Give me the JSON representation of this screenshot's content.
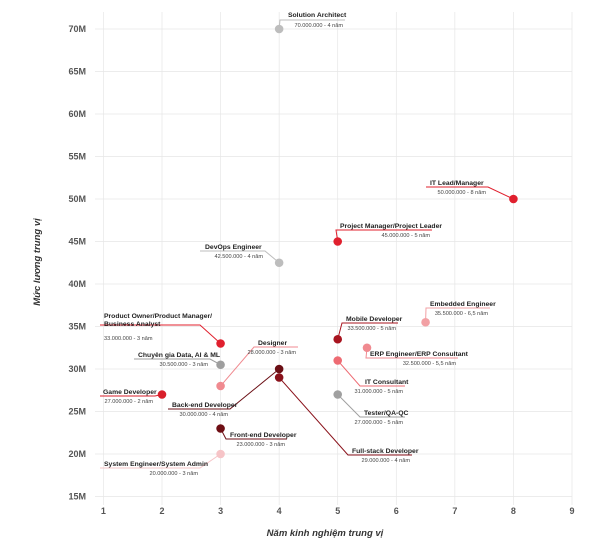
{
  "chart_data": {
    "type": "scatter",
    "xlabel": "Năm kinh nghiệm trung vị",
    "ylabel": "Mức lương trung vị",
    "xlim": [
      0.6,
      9
    ],
    "ylim": [
      14,
      72
    ],
    "x_ticks": [
      1,
      2,
      3,
      4,
      5,
      6,
      7,
      8,
      9
    ],
    "y_ticks": [
      {
        "value": 15,
        "label": "15M"
      },
      {
        "value": 20,
        "label": "20M"
      },
      {
        "value": 25,
        "label": "25M"
      },
      {
        "value": 30,
        "label": "30M"
      },
      {
        "value": 35,
        "label": "35M"
      },
      {
        "value": 40,
        "label": "40M"
      },
      {
        "value": 45,
        "label": "45M"
      },
      {
        "value": 50,
        "label": "50M"
      },
      {
        "value": 55,
        "label": "55M"
      },
      {
        "value": 60,
        "label": "60M"
      },
      {
        "value": 65,
        "label": "65M"
      },
      {
        "value": 70,
        "label": "70M"
      }
    ],
    "grid": true,
    "points": [
      {
        "name": "Solution Architect",
        "detail": "70.000.000 - 4 năm",
        "x": 4,
        "y": 70,
        "color": "#bdbdbd"
      },
      {
        "name": "IT Lead/Manager",
        "detail": "50.000.000 - 8 năm",
        "x": 8,
        "y": 50,
        "color": "#e0202e"
      },
      {
        "name": "Project Manager/Project Leader",
        "detail": "45.000.000 - 5 năm",
        "x": 5,
        "y": 45,
        "color": "#e0202e"
      },
      {
        "name": "DevOps Engineer",
        "detail": "42.500.000 - 4 năm",
        "x": 4,
        "y": 42.5,
        "color": "#bdbdbd"
      },
      {
        "name": "Embedded Engineer",
        "detail": "35.500.000 - 6,5 năm",
        "x": 6.5,
        "y": 35.5,
        "color": "#f2a0a4"
      },
      {
        "name": "Mobile Developer",
        "detail": "33.500.000 - 5 năm",
        "x": 5,
        "y": 33.5,
        "color": "#a8141f"
      },
      {
        "name": "Product Owner/Product Manager/",
        "name2": "Business Analyst",
        "detail": "33.000.000 - 3 năm",
        "x": 3,
        "y": 33,
        "color": "#e0202e"
      },
      {
        "name": "ERP Engineer/ERP Consultant",
        "detail": "32.500.000 - 5,5 năm",
        "x": 5.5,
        "y": 32.5,
        "color": "#f08a90"
      },
      {
        "name": "Chuyên gia Data, AI & ML",
        "detail": "30.500.000 - 3 năm",
        "x": 3,
        "y": 30.5,
        "color": "#9e9e9e"
      },
      {
        "name": "IT Consultant",
        "detail": "31.000.000 - 5 năm",
        "x": 5,
        "y": 31,
        "color": "#ee6b73"
      },
      {
        "name": "Designer",
        "detail": "28.000.000 - 3 năm",
        "x": 3,
        "y": 28,
        "color": "#f08a90"
      },
      {
        "name": "Back-end Developer",
        "detail": "30.000.000 - 4 năm",
        "x": 4,
        "y": 30,
        "color": "#6b0f15"
      },
      {
        "name": "Full-stack Developer",
        "detail": "29.000.000 - 4 năm",
        "x": 4,
        "y": 29,
        "color": "#8a121b"
      },
      {
        "name": "Game Developer",
        "detail": "27.000.000 - 2 năm",
        "x": 2,
        "y": 27,
        "color": "#d81f2b"
      },
      {
        "name": "Tester/QA-QC",
        "detail": "27.000.000 - 5 năm",
        "x": 5,
        "y": 27,
        "color": "#a0a0a0"
      },
      {
        "name": "Front-end Developer",
        "detail": "23.000.000 - 3 năm",
        "x": 3,
        "y": 23,
        "color": "#6e0e14"
      },
      {
        "name": "System Engineer/System Admin",
        "detail": "20.000.000 - 3 năm",
        "x": 3,
        "y": 20,
        "color": "#f6c4c7"
      }
    ]
  }
}
